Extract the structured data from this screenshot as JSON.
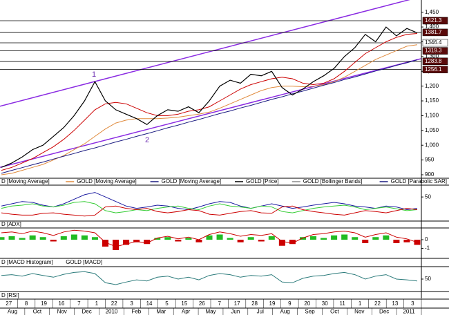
{
  "chart_data": [
    {
      "type": "line",
      "ylim": [
        893,
        1482
      ],
      "yticks": [
        {
          "value": 1450,
          "label": "1,450"
        },
        {
          "value": 1400,
          "label": "1,400"
        },
        {
          "value": 1350,
          "label": "1,350"
        },
        {
          "value": 1300,
          "label": "1,300"
        },
        {
          "value": 1250,
          "label": "1,250"
        },
        {
          "value": 1200,
          "label": "1,200"
        },
        {
          "value": 1150,
          "label": "1,150"
        },
        {
          "value": 1100,
          "label": "1,100"
        },
        {
          "value": 1050,
          "label": "1,050"
        },
        {
          "value": 1000,
          "label": "1,000"
        },
        950,
        900
      ],
      "series": [
        {
          "name": "D [Moving Average]",
          "color": "#cc0000",
          "values": [
            915,
            925,
            940,
            955,
            975,
            995,
            1020,
            1050,
            1085,
            1120,
            1140,
            1145,
            1140,
            1125,
            1110,
            1100,
            1100,
            1105,
            1115,
            1120,
            1130,
            1150,
            1170,
            1190,
            1205,
            1215,
            1225,
            1230,
            1225,
            1210,
            1205,
            1210,
            1225,
            1250,
            1280,
            1310,
            1330,
            1350,
            1365,
            1375,
            1378
          ]
        },
        {
          "name": "GOLD [Moving Average]",
          "color": "#e08a3c",
          "values": [
            900,
            905,
            915,
            925,
            935,
            950,
            965,
            985,
            1005,
            1030,
            1055,
            1075,
            1085,
            1090,
            1090,
            1090,
            1092,
            1095,
            1100,
            1105,
            1112,
            1125,
            1140,
            1155,
            1170,
            1185,
            1195,
            1200,
            1200,
            1198,
            1200,
            1205,
            1215,
            1230,
            1250,
            1270,
            1290,
            1305,
            1320,
            1335,
            1340
          ]
        },
        {
          "name": "GOLD [Moving Average]",
          "color": "#1a1a80",
          "values": [
            905,
            915,
            924,
            934,
            943,
            953,
            963,
            972,
            982,
            991,
            1001,
            1011,
            1020,
            1030,
            1039,
            1049,
            1059,
            1068,
            1078,
            1087,
            1097,
            1107,
            1116,
            1126,
            1135,
            1145,
            1155,
            1164,
            1174,
            1183,
            1193,
            1203,
            1212,
            1222,
            1231,
            1241,
            1251,
            1260,
            1270,
            1279,
            1289
          ]
        },
        {
          "name": "GOLD [Price]",
          "color": "#000000",
          "values": [
            925,
            940,
            960,
            985,
            1000,
            1030,
            1060,
            1100,
            1150,
            1215,
            1150,
            1120,
            1105,
            1090,
            1070,
            1100,
            1120,
            1115,
            1130,
            1110,
            1150,
            1200,
            1220,
            1210,
            1240,
            1235,
            1250,
            1195,
            1170,
            1190,
            1215,
            1235,
            1260,
            1300,
            1330,
            1375,
            1350,
            1400,
            1370,
            1395,
            1380
          ]
        }
      ],
      "legend_only": [
        {
          "name": "GOLD [Bollinger Bands]",
          "color": "#888888"
        },
        {
          "name": "GOLD [Parabolic SAR]",
          "color": "#1a1a80"
        }
      ],
      "trendlines": [
        {
          "color": "#8a2be2",
          "values": [
            1132,
            1503
          ]
        },
        {
          "color": "#8a2be2",
          "values": [
            925,
            1293
          ]
        }
      ],
      "price_tags": {
        "values": [
          1421.3,
          1381.7,
          1346.4,
          1319.3,
          1283.8,
          1256.1
        ],
        "value_labels": [
          "1421.3",
          "1381.7",
          "1346.4",
          "1319.3",
          "1283.8",
          "1256.1"
        ],
        "colors": [
          "#5a0a0a",
          "#5a0a0a",
          "#ffffff",
          "#5a0a0a",
          "#5a0a0a",
          "#5a0a0a"
        ]
      },
      "annotations": [
        "1",
        "2"
      ]
    },
    {
      "type": "line",
      "ylim": [
        0,
        70
      ],
      "yticks": [
        50
      ],
      "series": [
        {
          "name": "D [ADX]",
          "color": "#1a1aa0",
          "values": [
            30,
            35,
            40,
            38,
            32,
            28,
            35,
            45,
            55,
            60,
            50,
            40,
            30,
            25,
            28,
            32,
            30,
            25,
            22,
            28,
            35,
            40,
            38,
            30,
            25,
            30,
            35,
            30,
            25,
            28,
            32,
            35,
            38,
            35,
            30,
            28,
            25,
            30,
            28,
            22,
            25
          ]
        },
        {
          "color": "#33cc33",
          "values": [
            25,
            30,
            32,
            35,
            30,
            28,
            32,
            38,
            40,
            35,
            20,
            15,
            18,
            22,
            20,
            25,
            28,
            30,
            25,
            22,
            30,
            35,
            30,
            28,
            25,
            30,
            28,
            18,
            15,
            20,
            25,
            28,
            30,
            32,
            28,
            22,
            25,
            28,
            24,
            20,
            22
          ]
        },
        {
          "color": "#cc0000",
          "values": [
            15,
            12,
            10,
            10,
            14,
            15,
            12,
            10,
            8,
            10,
            28,
            30,
            25,
            22,
            25,
            18,
            15,
            18,
            22,
            20,
            12,
            10,
            14,
            18,
            20,
            15,
            14,
            28,
            30,
            22,
            18,
            15,
            12,
            10,
            15,
            20,
            18,
            15,
            20,
            25,
            22
          ]
        }
      ]
    },
    {
      "type": "line",
      "ylim": [
        -2,
        1.2
      ],
      "yticks": [
        0,
        -1
      ],
      "series": [
        {
          "name": "D [MACD Histogram]",
          "type": "bar",
          "color": "#22bb22",
          "negative_color": "#cc0000",
          "values": [
            0.3,
            0.4,
            0.2,
            0.5,
            0.3,
            -0.2,
            0.4,
            0.6,
            0.5,
            0.3,
            -0.8,
            -1.2,
            -0.6,
            -0.3,
            -0.5,
            0.2,
            0.3,
            -0.2,
            0.2,
            -0.3,
            0.5,
            0.6,
            0.2,
            -0.3,
            0.3,
            -0.2,
            0.4,
            -0.7,
            -0.5,
            0.3,
            0.4,
            0.2,
            0.5,
            0.6,
            0.3,
            -0.4,
            0.3,
            0.5,
            -0.4,
            -0.3,
            -0.6
          ]
        },
        {
          "name": "GOLD [MACD]",
          "color": "#cc0000",
          "values": [
            0.8,
            0.9,
            0.7,
            1,
            0.8,
            0.5,
            0.9,
            1.1,
            1,
            0.8,
            -0.3,
            -0.8,
            -0.5,
            -0.2,
            -0.4,
            0.2,
            0.4,
            0.1,
            0.3,
            0,
            0.6,
            0.9,
            0.7,
            0.4,
            0.6,
            0.5,
            0.7,
            -0.2,
            -0.4,
            0.2,
            0.6,
            0.7,
            0.9,
            1,
            0.8,
            0.3,
            0.6,
            0.8,
            0.3,
            0.1,
            -0.3
          ]
        }
      ]
    },
    {
      "type": "line",
      "ylim": [
        20,
        80
      ],
      "yticks": [
        50
      ],
      "series": [
        {
          "name": "D [RSI]",
          "color": "#2a7a7a",
          "values": [
            60,
            62,
            58,
            65,
            60,
            55,
            63,
            68,
            70,
            65,
            40,
            35,
            42,
            48,
            45,
            55,
            58,
            50,
            55,
            48,
            60,
            65,
            62,
            55,
            60,
            58,
            62,
            42,
            40,
            52,
            58,
            60,
            65,
            68,
            62,
            50,
            58,
            62,
            50,
            48,
            45
          ]
        }
      ]
    }
  ],
  "x_axis": {
    "days": [
      "27",
      "8",
      "19",
      "16",
      "7",
      "1",
      "22",
      "3",
      "14",
      "5",
      "15",
      "26",
      "7",
      "17",
      "28",
      "19",
      "9",
      "20",
      "30",
      "11",
      "1",
      "22",
      "13",
      "3"
    ],
    "months": [
      "Aug",
      "Oct",
      "Nov",
      "Dec",
      "2010",
      "Feb",
      "Mar",
      "Apr",
      "May",
      "Jun",
      "Jul",
      "Aug",
      "Sep",
      "Oct",
      "Nov",
      "Dec",
      "2011"
    ]
  }
}
